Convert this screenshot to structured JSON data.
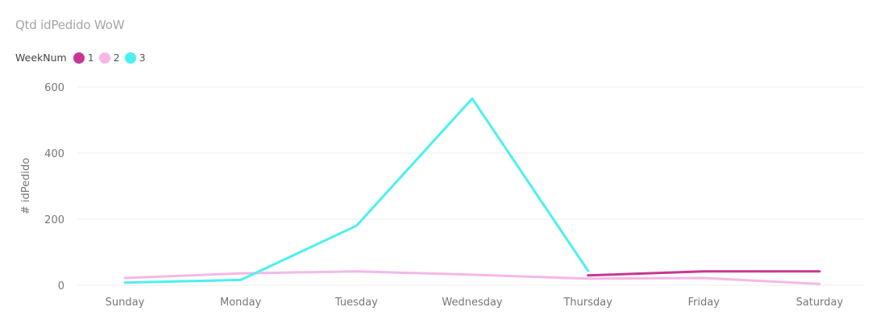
{
  "chart_data": {
    "type": "line",
    "title": "Qtd idPedido WoW",
    "xlabel": "",
    "ylabel": "# idPedido",
    "legend_title": "WeekNum",
    "legend_position": "top-left",
    "grid": true,
    "categories": [
      "Sunday",
      "Monday",
      "Tuesday",
      "Wednesday",
      "Thursday",
      "Friday",
      "Saturday"
    ],
    "yticks": [
      0,
      200,
      400,
      600
    ],
    "ylim": [
      0,
      600
    ],
    "series": [
      {
        "name": "1",
        "color": "#c63896",
        "values": [
          null,
          null,
          null,
          null,
          30,
          42,
          42
        ]
      },
      {
        "name": "2",
        "color": "#f5b8e6",
        "values": [
          22,
          36,
          42,
          32,
          20,
          22,
          4
        ]
      },
      {
        "name": "3",
        "color": "#4df0f0",
        "values": [
          8,
          16,
          180,
          565,
          44,
          null,
          null
        ]
      }
    ]
  }
}
